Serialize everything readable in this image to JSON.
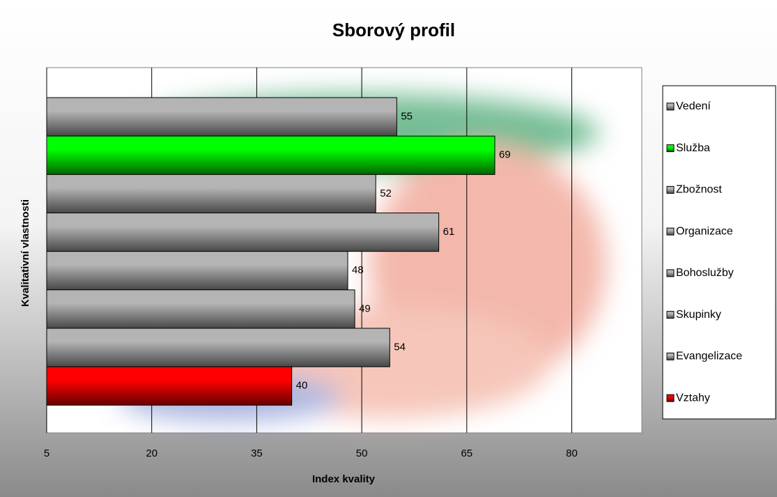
{
  "chart_data": {
    "type": "bar",
    "orientation": "horizontal",
    "title": "Sborový profil",
    "xlabel": "Index kvality",
    "ylabel": "Kvalitativní vlastnosti",
    "categories": [
      "Vedení",
      "Služba",
      "Zbožnost",
      "Organizace",
      "Bohoslužby",
      "Skupinky",
      "Evangelizace",
      "Vztahy"
    ],
    "values": [
      55,
      69,
      52,
      61,
      48,
      49,
      54,
      40
    ],
    "colors": [
      "#b4b4b4",
      "#00ff00",
      "#b4b4b4",
      "#b4b4b4",
      "#b4b4b4",
      "#b4b4b4",
      "#b4b4b4",
      "#ff0000"
    ],
    "xlim": [
      5,
      90
    ],
    "xticks": [
      5,
      20,
      35,
      50,
      65,
      80
    ],
    "grid": true,
    "legend": "right"
  }
}
